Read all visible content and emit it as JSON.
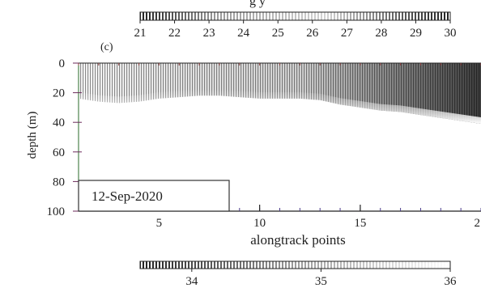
{
  "chart_data": {
    "type": "heatmap",
    "panel_label": "(c)",
    "title_fragment": "g y",
    "ylabel": "depth (m)",
    "xlabel": "alongtrack points",
    "annotation": "12-Sep-2020",
    "x_ticks": [
      5,
      10,
      15
    ],
    "x_tick_labels": [
      "5",
      "10",
      "15"
    ],
    "x_edge_label": "2",
    "xlim": [
      1,
      21
    ],
    "y_ticks": [
      0,
      20,
      40,
      60,
      80,
      100
    ],
    "y_tick_labels": [
      "0",
      "20",
      "40",
      "60",
      "80",
      "100"
    ],
    "ylim": [
      0,
      100
    ],
    "y_reversed": true,
    "top_colorbar": {
      "ticks": [
        21,
        22,
        23,
        24,
        25,
        26,
        27,
        28,
        29,
        30
      ],
      "tick_labels": [
        "21",
        "22",
        "23",
        "24",
        "25",
        "26",
        "27",
        "28",
        "29",
        "30"
      ],
      "range": [
        21,
        30
      ]
    },
    "bottom_colorbar": {
      "ticks": [
        34,
        35,
        36
      ],
      "tick_labels": [
        "34",
        "35",
        "36"
      ],
      "range": [
        33.6,
        36
      ]
    },
    "mixed_layer_depth": {
      "x": [
        1,
        2,
        3,
        4,
        5,
        6,
        7,
        8,
        9,
        10,
        11,
        12,
        13,
        14,
        15,
        16,
        17,
        18,
        19,
        20,
        21
      ],
      "depth": [
        24,
        26,
        27,
        26,
        24,
        23,
        22,
        22,
        23,
        24,
        24,
        24,
        25,
        28,
        30,
        32,
        33,
        35,
        37,
        39,
        41
      ]
    }
  }
}
